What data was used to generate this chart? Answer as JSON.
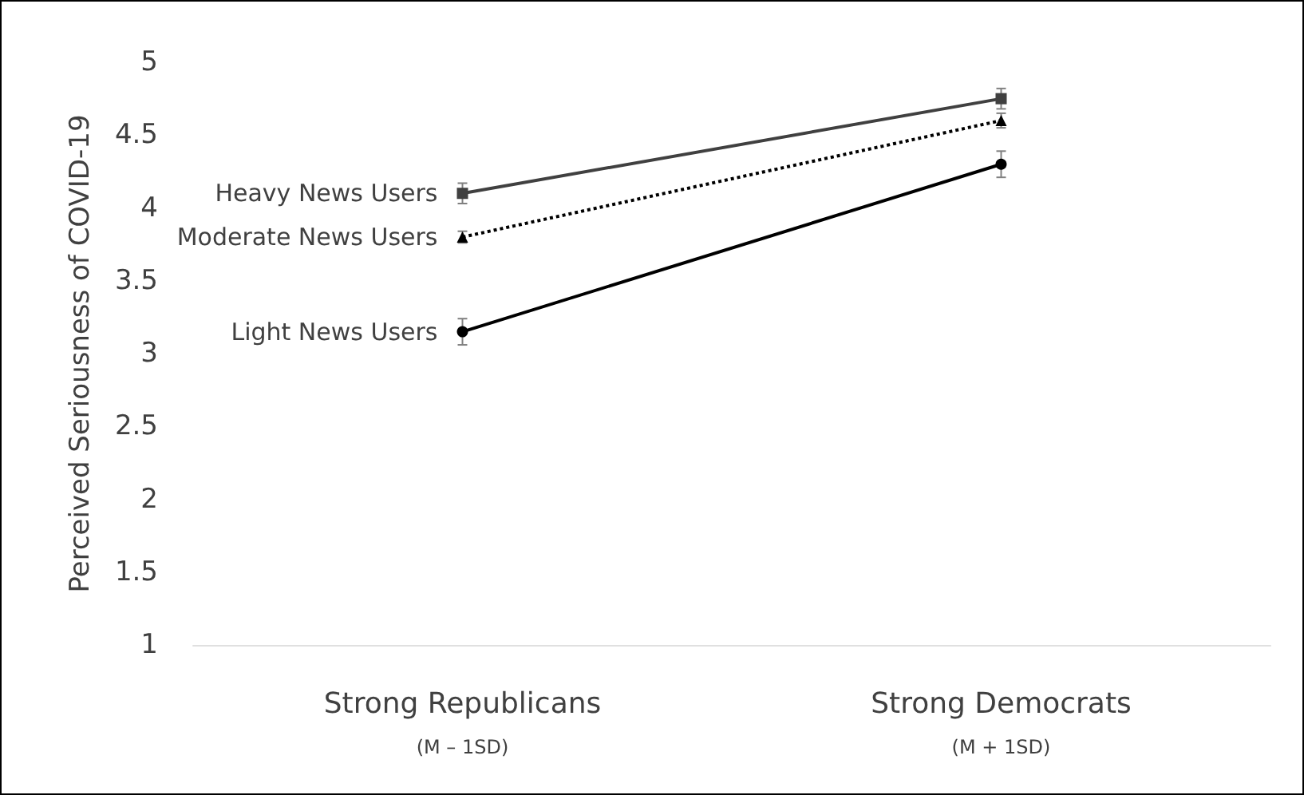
{
  "chart_data": {
    "type": "line",
    "ylabel": "Perceived Seriousness of COVID-19",
    "categories": [
      "Strong Republicans",
      "Strong Democrats"
    ],
    "annotations": [
      "(M – 1SD)",
      "(M + 1SD)"
    ],
    "series": [
      {
        "name": "Heavy News Users",
        "color": "#404040",
        "values": [
          4.1,
          4.75
        ],
        "errors": [
          0.07,
          0.07
        ],
        "marker": "square",
        "line_style": "solid"
      },
      {
        "name": "Moderate News Users",
        "color": "#000000",
        "values": [
          3.8,
          4.6
        ],
        "errors": [
          0.04,
          0.05
        ],
        "marker": "triangle",
        "line_style": "dotted"
      },
      {
        "name": "Light News Users",
        "color": "#000000",
        "values": [
          3.15,
          4.3
        ],
        "errors": [
          0.09,
          0.09
        ],
        "marker": "circle",
        "line_style": "solid"
      }
    ],
    "ylim": [
      1,
      5
    ],
    "yticks": [
      1,
      1.5,
      2,
      2.5,
      3,
      3.5,
      4,
      4.5,
      5
    ],
    "grid": false,
    "legend": false
  }
}
